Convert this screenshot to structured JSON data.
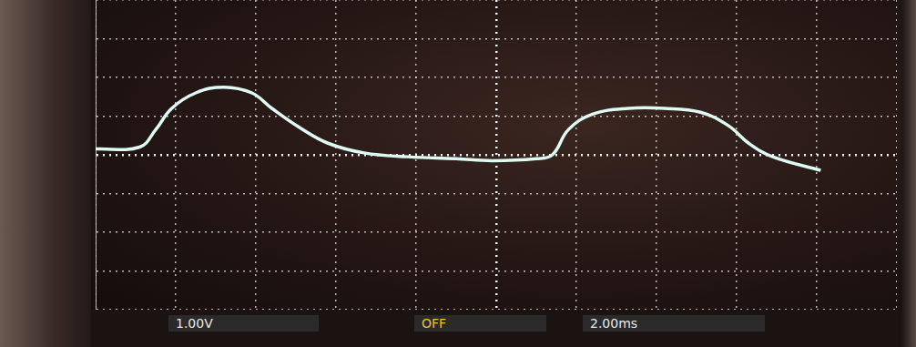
{
  "chart_data": {
    "type": "line",
    "annotations": [
      "1.00V",
      "OFF",
      "2.00ms"
    ],
    "x": [
      -10,
      -8.9,
      -8.5,
      -8.1,
      -7.5,
      -6.8,
      -6.1,
      -5.6,
      -4.9,
      -4.2,
      -3.3,
      -2.2,
      -1.0,
      -0.1,
      1.0,
      1.4,
      1.8,
      2.4,
      3.3,
      4.2,
      5.1,
      5.8,
      6.3,
      6.9,
      8.1
    ],
    "values": [
      0.15,
      0.2,
      0.65,
      1.2,
      1.6,
      1.75,
      1.6,
      1.2,
      0.7,
      0.3,
      0.05,
      -0.05,
      -0.1,
      -0.15,
      -0.1,
      0.0,
      0.65,
      1.05,
      1.2,
      1.2,
      1.1,
      0.75,
      0.3,
      -0.05,
      -0.4
    ],
    "color": "#dffcf4",
    "xlim": [
      -10,
      10
    ],
    "xticks": [
      -10,
      -8,
      -6,
      -4,
      -2,
      0,
      2,
      4,
      6,
      8,
      10
    ],
    "ylim": [
      -4,
      4
    ],
    "yticks": [
      -4,
      -3,
      -2,
      -1,
      0,
      1,
      2,
      3,
      4
    ],
    "grid": true,
    "tick_labels": false
  }
}
